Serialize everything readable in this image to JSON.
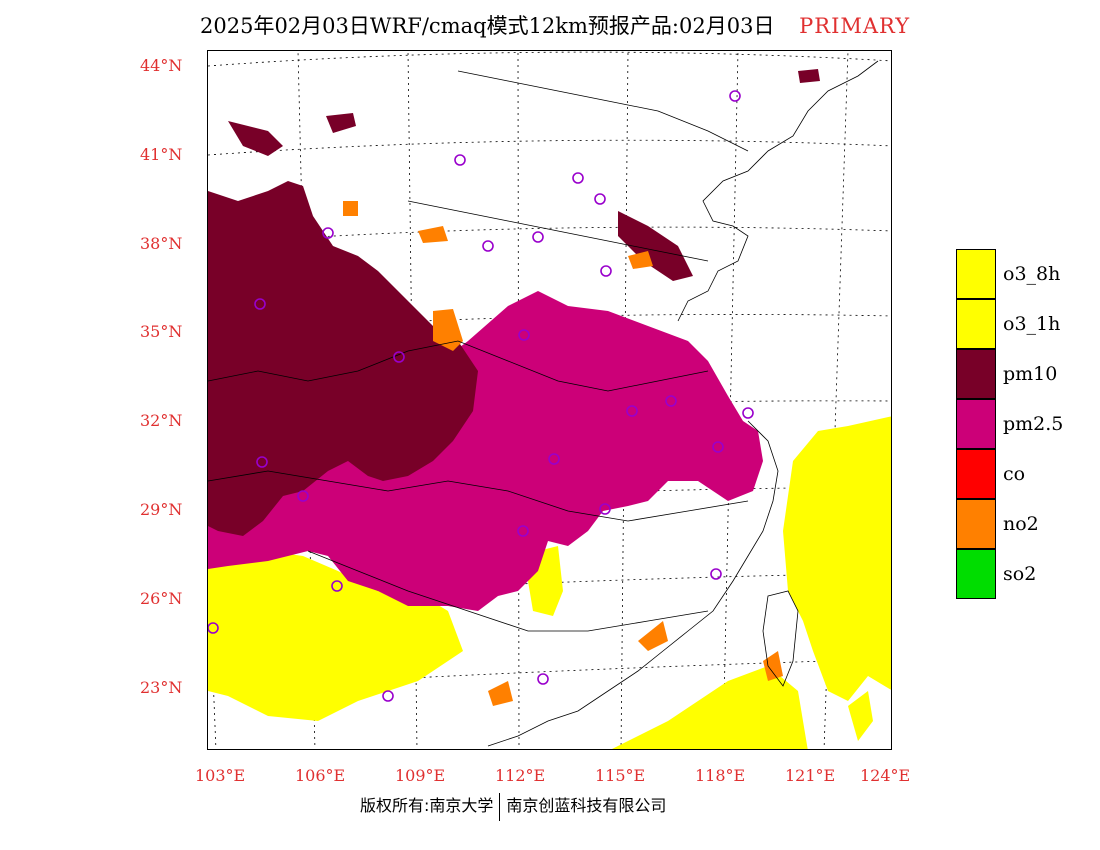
{
  "title": {
    "text": "2025年02月03日WRF/cmaq模式12km预报产品:02月03日",
    "tag": "PRIMARY"
  },
  "colors": {
    "o3_8h": "#ffff00",
    "o3_1h": "#ffff00",
    "pm10": "#780028",
    "pm2.5": "#cc0078",
    "co": "#ff0000",
    "no2": "#ff8000",
    "so2": "#00dd00",
    "station": "#9900cc",
    "label": "#e03030"
  },
  "axes": {
    "latitudes": [
      "44°N",
      "41°N",
      "38°N",
      "35°N",
      "32°N",
      "29°N",
      "26°N",
      "23°N"
    ],
    "longitudes": [
      "103°E",
      "106°E",
      "109°E",
      "112°E",
      "115°E",
      "118°E",
      "121°E",
      "124°E"
    ]
  },
  "legend": [
    {
      "label": "o3_8h",
      "color": "#ffff00"
    },
    {
      "label": "o3_1h",
      "color": "#ffff00"
    },
    {
      "label": "pm10",
      "color": "#780028"
    },
    {
      "label": "pm2.5",
      "color": "#cc0078"
    },
    {
      "label": "co",
      "color": "#ff0000"
    },
    {
      "label": "no2",
      "color": "#ff8000"
    },
    {
      "label": "so2",
      "color": "#00dd00"
    }
  ],
  "copyright": {
    "left": "版权所有:南京大学",
    "right": "南京创蓝科技有限公司"
  }
}
